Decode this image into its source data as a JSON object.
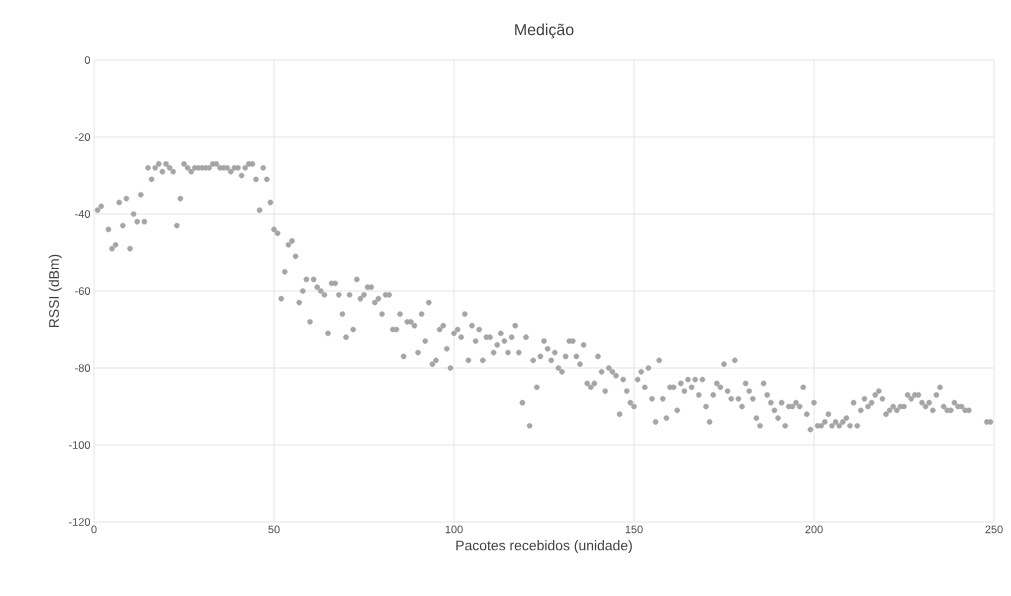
{
  "chart_data": {
    "type": "scatter",
    "title": "Medição",
    "xlabel": "Pacotes recebidos (unidade)",
    "ylabel": "RSSI (dBm)",
    "xlim": [
      0,
      250
    ],
    "ylim": [
      -120,
      0
    ],
    "xticks": [
      0,
      50,
      100,
      150,
      200,
      250
    ],
    "yticks": [
      -120,
      -100,
      -80,
      -60,
      -40,
      -20,
      0
    ],
    "grid": true,
    "series": [
      {
        "color": "#a5a5a5",
        "x": [
          1,
          2,
          4,
          5,
          6,
          7,
          8,
          9,
          10,
          11,
          12,
          13,
          14,
          15,
          16,
          17,
          18,
          19,
          20,
          21,
          22,
          23,
          24,
          25,
          26,
          27,
          28,
          29,
          30,
          31,
          32,
          33,
          34,
          35,
          36,
          37,
          38,
          39,
          40,
          41,
          42,
          43,
          44,
          45,
          46,
          47,
          48,
          49,
          50,
          51,
          52,
          53,
          54,
          55,
          56,
          57,
          58,
          59,
          60,
          61,
          62,
          63,
          64,
          65,
          66,
          67,
          68,
          69,
          70,
          71,
          72,
          73,
          74,
          75,
          76,
          77,
          78,
          79,
          80,
          81,
          82,
          83,
          84,
          85,
          86,
          87,
          88,
          89,
          90,
          91,
          92,
          93,
          94,
          95,
          96,
          97,
          98,
          99,
          100,
          101,
          102,
          103,
          104,
          105,
          106,
          107,
          108,
          109,
          110,
          111,
          112,
          113,
          114,
          115,
          116,
          117,
          118,
          119,
          120,
          121,
          122,
          123,
          124,
          125,
          126,
          127,
          128,
          129,
          130,
          131,
          132,
          133,
          134,
          135,
          136,
          137,
          138,
          139,
          140,
          141,
          142,
          143,
          144,
          145,
          146,
          147,
          148,
          149,
          150,
          151,
          152,
          153,
          154,
          155,
          156,
          157,
          158,
          159,
          160,
          161,
          162,
          163,
          164,
          165,
          166,
          167,
          168,
          169,
          170,
          171,
          172,
          173,
          174,
          175,
          176,
          177,
          178,
          179,
          180,
          181,
          182,
          183,
          184,
          185,
          186,
          187,
          188,
          189,
          190,
          191,
          192,
          193,
          194,
          195,
          196,
          197,
          198,
          199,
          200,
          201,
          202,
          203,
          204,
          205,
          206,
          207,
          208,
          209,
          210,
          211,
          212,
          213,
          214,
          215,
          216,
          217,
          218,
          219,
          220,
          221,
          222,
          223,
          224,
          225,
          226,
          227,
          228,
          229,
          230,
          231,
          232,
          233,
          234,
          235,
          236,
          237,
          238,
          239,
          240,
          241,
          242,
          243,
          248,
          249
        ],
        "values": [
          -39,
          -38,
          -44,
          -49,
          -48,
          -37,
          -43,
          -36,
          -49,
          -40,
          -42,
          -35,
          -42,
          -28,
          -31,
          -28,
          -27,
          -29,
          -27,
          -28,
          -29,
          -43,
          -36,
          -27,
          -28,
          -29,
          -28,
          -28,
          -28,
          -28,
          -28,
          -27,
          -27,
          -28,
          -28,
          -28,
          -29,
          -28,
          -28,
          -30,
          -28,
          -27,
          -27,
          -31,
          -39,
          -28,
          -31,
          -37,
          -44,
          -45,
          -62,
          -55,
          -48,
          -47,
          -51,
          -63,
          -60,
          -57,
          -68,
          -57,
          -59,
          -60,
          -61,
          -71,
          -58,
          -58,
          -61,
          -66,
          -72,
          -61,
          -70,
          -57,
          -62,
          -61,
          -59,
          -59,
          -63,
          -62,
          -66,
          -61,
          -61,
          -70,
          -70,
          -66,
          -77,
          -68,
          -68,
          -69,
          -76,
          -66,
          -73,
          -63,
          -79,
          -78,
          -70,
          -69,
          -75,
          -80,
          -71,
          -70,
          -72,
          -66,
          -78,
          -69,
          -73,
          -70,
          -78,
          -72,
          -72,
          -76,
          -74,
          -71,
          -73,
          -76,
          -72,
          -69,
          -76,
          -89,
          -72,
          -95,
          -78,
          -85,
          -77,
          -73,
          -75,
          -78,
          -76,
          -80,
          -81,
          -77,
          -73,
          -73,
          -77,
          -79,
          -74,
          -84,
          -85,
          -84,
          -77,
          -81,
          -86,
          -80,
          -81,
          -82,
          -92,
          -83,
          -86,
          -89,
          -90,
          -83,
          -81,
          -85,
          -80,
          -88,
          -94,
          -78,
          -88,
          -93,
          -85,
          -85,
          -91,
          -84,
          -86,
          -83,
          -85,
          -83,
          -87,
          -83,
          -90,
          -94,
          -87,
          -84,
          -85,
          -79,
          -86,
          -88,
          -78,
          -88,
          -90,
          -84,
          -86,
          -88,
          -93,
          -95,
          -84,
          -87,
          -89,
          -91,
          -93,
          -89,
          -95,
          -90,
          -90,
          -89,
          -90,
          -85,
          -92,
          -96,
          -89,
          -95,
          -95,
          -94,
          -92,
          -95,
          -94,
          -95,
          -94,
          -93,
          -95,
          -89,
          -95,
          -91,
          -88,
          -90,
          -89,
          -87,
          -86,
          -88,
          -92,
          -91,
          -90,
          -91,
          -90,
          -90,
          -87,
          -88,
          -87,
          -87,
          -89,
          -90,
          -89,
          -91,
          -87,
          -85,
          -90,
          -91,
          -91,
          -89,
          -90,
          -90,
          -91,
          -91,
          -94,
          -94
        ]
      }
    ]
  }
}
